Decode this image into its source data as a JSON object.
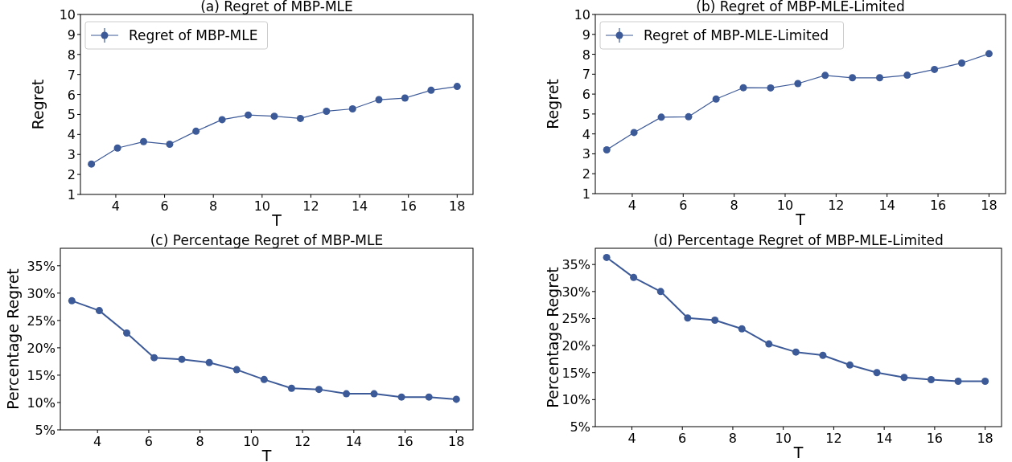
{
  "chart_data": [
    {
      "type": "line",
      "title": "(a) Regret of MBP-MLE",
      "xlabel": "T",
      "ylabel": "Regret",
      "x": [
        3,
        4.07,
        5.14,
        6.21,
        7.29,
        8.36,
        9.43,
        10.5,
        11.57,
        12.64,
        13.71,
        14.79,
        15.86,
        16.93,
        18
      ],
      "series": [
        {
          "name": "Regret of MBP-MLE",
          "color": "#3d5a98",
          "values": [
            2.52,
            3.32,
            3.64,
            3.51,
            4.16,
            4.74,
            4.97,
            4.91,
            4.8,
            5.16,
            5.28,
            5.74,
            5.82,
            6.21,
            6.4
          ]
        }
      ],
      "xlim": [
        2.55,
        18.65
      ],
      "ylim": [
        1,
        10
      ],
      "xticks": [
        4,
        6,
        8,
        10,
        12,
        14,
        16,
        18
      ],
      "yticks": [
        1,
        2,
        3,
        4,
        5,
        6,
        7,
        8,
        9,
        10
      ],
      "legend": "top left",
      "marker": "circle"
    },
    {
      "type": "line",
      "title": "(b) Regret of MBP-MLE-Limited",
      "xlabel": "T",
      "ylabel": "Regret",
      "x": [
        3,
        4.07,
        5.14,
        6.21,
        7.29,
        8.36,
        9.43,
        10.5,
        11.57,
        12.64,
        13.71,
        14.79,
        15.86,
        16.93,
        18
      ],
      "series": [
        {
          "name": "Regret of MBP-MLE-Limited",
          "color": "#3d5a98",
          "values": [
            3.2,
            4.07,
            4.84,
            4.86,
            5.75,
            6.32,
            6.31,
            6.53,
            6.94,
            6.82,
            6.82,
            6.95,
            7.24,
            7.56,
            8.03
          ]
        }
      ],
      "xlim": [
        2.55,
        18.65
      ],
      "ylim": [
        1,
        10
      ],
      "xticks": [
        4,
        6,
        8,
        10,
        12,
        14,
        16,
        18
      ],
      "yticks": [
        1,
        2,
        3,
        4,
        5,
        6,
        7,
        8,
        9,
        10
      ],
      "legend": "top left",
      "marker": "circle"
    },
    {
      "type": "line",
      "title": "(c) Percentage Regret of MBP-MLE",
      "xlabel": "T",
      "ylabel": "Percentage Regret",
      "x": [
        3,
        4.07,
        5.14,
        6.21,
        7.29,
        8.36,
        9.43,
        10.5,
        11.57,
        12.64,
        13.71,
        14.79,
        15.86,
        16.93,
        18
      ],
      "series": [
        {
          "color": "#3d5a98",
          "values": [
            28.6,
            26.8,
            22.7,
            18.2,
            17.9,
            17.3,
            16.0,
            14.2,
            12.6,
            12.4,
            11.6,
            11.6,
            11.0,
            11.0,
            10.6
          ]
        }
      ],
      "xlim": [
        2.55,
        18.65
      ],
      "ylim": [
        5,
        38.2
      ],
      "xticks": [
        4,
        6,
        8,
        10,
        12,
        14,
        16,
        18
      ],
      "yticks": [
        {
          "value": 5,
          "label": "5%"
        },
        {
          "value": 10,
          "label": "10%"
        },
        {
          "value": 15,
          "label": "15%"
        },
        {
          "value": 20,
          "label": "20%"
        },
        {
          "value": 25,
          "label": "25%"
        },
        {
          "value": 30,
          "label": "30%"
        },
        {
          "value": 35,
          "label": "35%"
        }
      ],
      "marker": "circle"
    },
    {
      "type": "line",
      "title": "(d) Percentage Regret of MBP-MLE-Limited",
      "xlabel": "T",
      "ylabel": "Percentage Regret",
      "x": [
        3,
        4.07,
        5.14,
        6.21,
        7.29,
        8.36,
        9.43,
        10.5,
        11.57,
        12.64,
        13.71,
        14.79,
        15.86,
        16.93,
        18
      ],
      "series": [
        {
          "color": "#3d5a98",
          "values": [
            36.3,
            32.6,
            30.0,
            25.1,
            24.7,
            23.1,
            20.3,
            18.8,
            18.2,
            16.4,
            15.0,
            14.1,
            13.7,
            13.4,
            13.4
          ]
        }
      ],
      "xlim": [
        2.55,
        18.65
      ],
      "ylim": [
        5,
        38.0
      ],
      "xticks": [
        4,
        6,
        8,
        10,
        12,
        14,
        16,
        18
      ],
      "yticks": [
        {
          "value": 5,
          "label": "5%"
        },
        {
          "value": 10,
          "label": "10%"
        },
        {
          "value": 15,
          "label": "15%"
        },
        {
          "value": 20,
          "label": "20%"
        },
        {
          "value": 25,
          "label": "25%"
        },
        {
          "value": 30,
          "label": "30%"
        },
        {
          "value": 35,
          "label": "35%"
        }
      ],
      "marker": "circle"
    }
  ]
}
